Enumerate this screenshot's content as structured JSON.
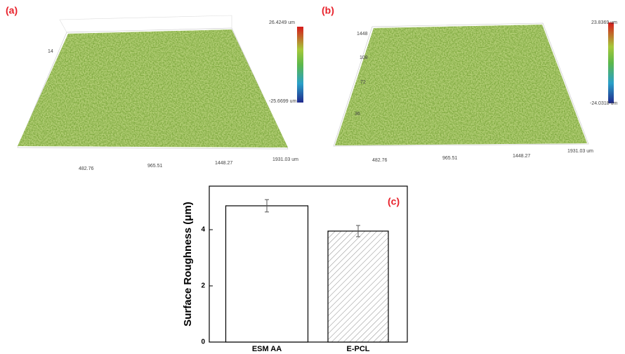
{
  "panels": [
    {
      "label": "(a)",
      "colorbar_max": "26.4249 um",
      "colorbar_min": "-25.6699 um",
      "x_ticks": [
        "482.76",
        "965.51",
        "1448.27",
        "1931.03 um"
      ],
      "y_ticks": [
        "14"
      ]
    },
    {
      "label": "(b)",
      "colorbar_max": "23.8369 um",
      "colorbar_min": "-24.0318 um",
      "x_ticks": [
        "482.76",
        "965.51",
        "1448.27",
        "1931.03 um"
      ],
      "y_ticks": [
        "1448",
        "108",
        "72",
        "36"
      ]
    }
  ],
  "chart_data": {
    "type": "bar",
    "label": "(c)",
    "y_label": "Surface Roughness (μm)",
    "categories": [
      "ESM AA",
      "E-PCL"
    ],
    "values": [
      4.85,
      3.95
    ],
    "errors": [
      0.22,
      0.2
    ],
    "ylim": [
      0,
      5.55
    ],
    "yticks": [
      0,
      2,
      4
    ],
    "fills": [
      "#ffffff",
      "hatch"
    ],
    "color": "#000000"
  }
}
